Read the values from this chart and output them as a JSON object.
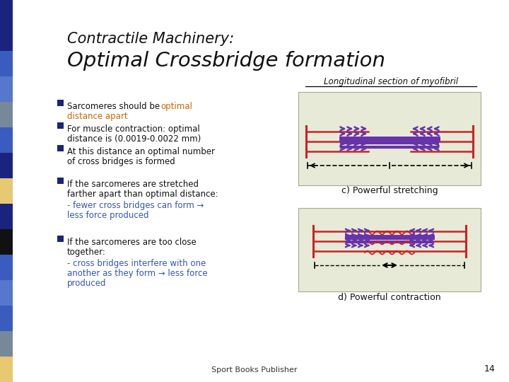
{
  "title_line1": "Contractile Machinery:",
  "title_line2": "Optimal Crossbridge formation",
  "bg_color": "#ffffff",
  "header_label": "Longitudinal section of myofibril",
  "diagram_bg": "#e8ead8",
  "purple": "#6633aa",
  "red": "#cc2222",
  "dark_navy": "#1a237e",
  "orange_text": "#cc6600",
  "blue_text": "#3355bb",
  "label_c": "c) Powerful stretching",
  "label_d": "d) Powerful contraction",
  "footer": "Sport Books Publisher",
  "page_num": "14",
  "left_colors": [
    "#1a237e",
    "#1a237e",
    "#3a5bbf",
    "#5577cc",
    "#778899",
    "#3a5bbf",
    "#1a237e",
    "#e8c870",
    "#1a237e",
    "#111111",
    "#3a5bbf",
    "#5577cc",
    "#3a5bbf",
    "#778899",
    "#e8c870"
  ]
}
